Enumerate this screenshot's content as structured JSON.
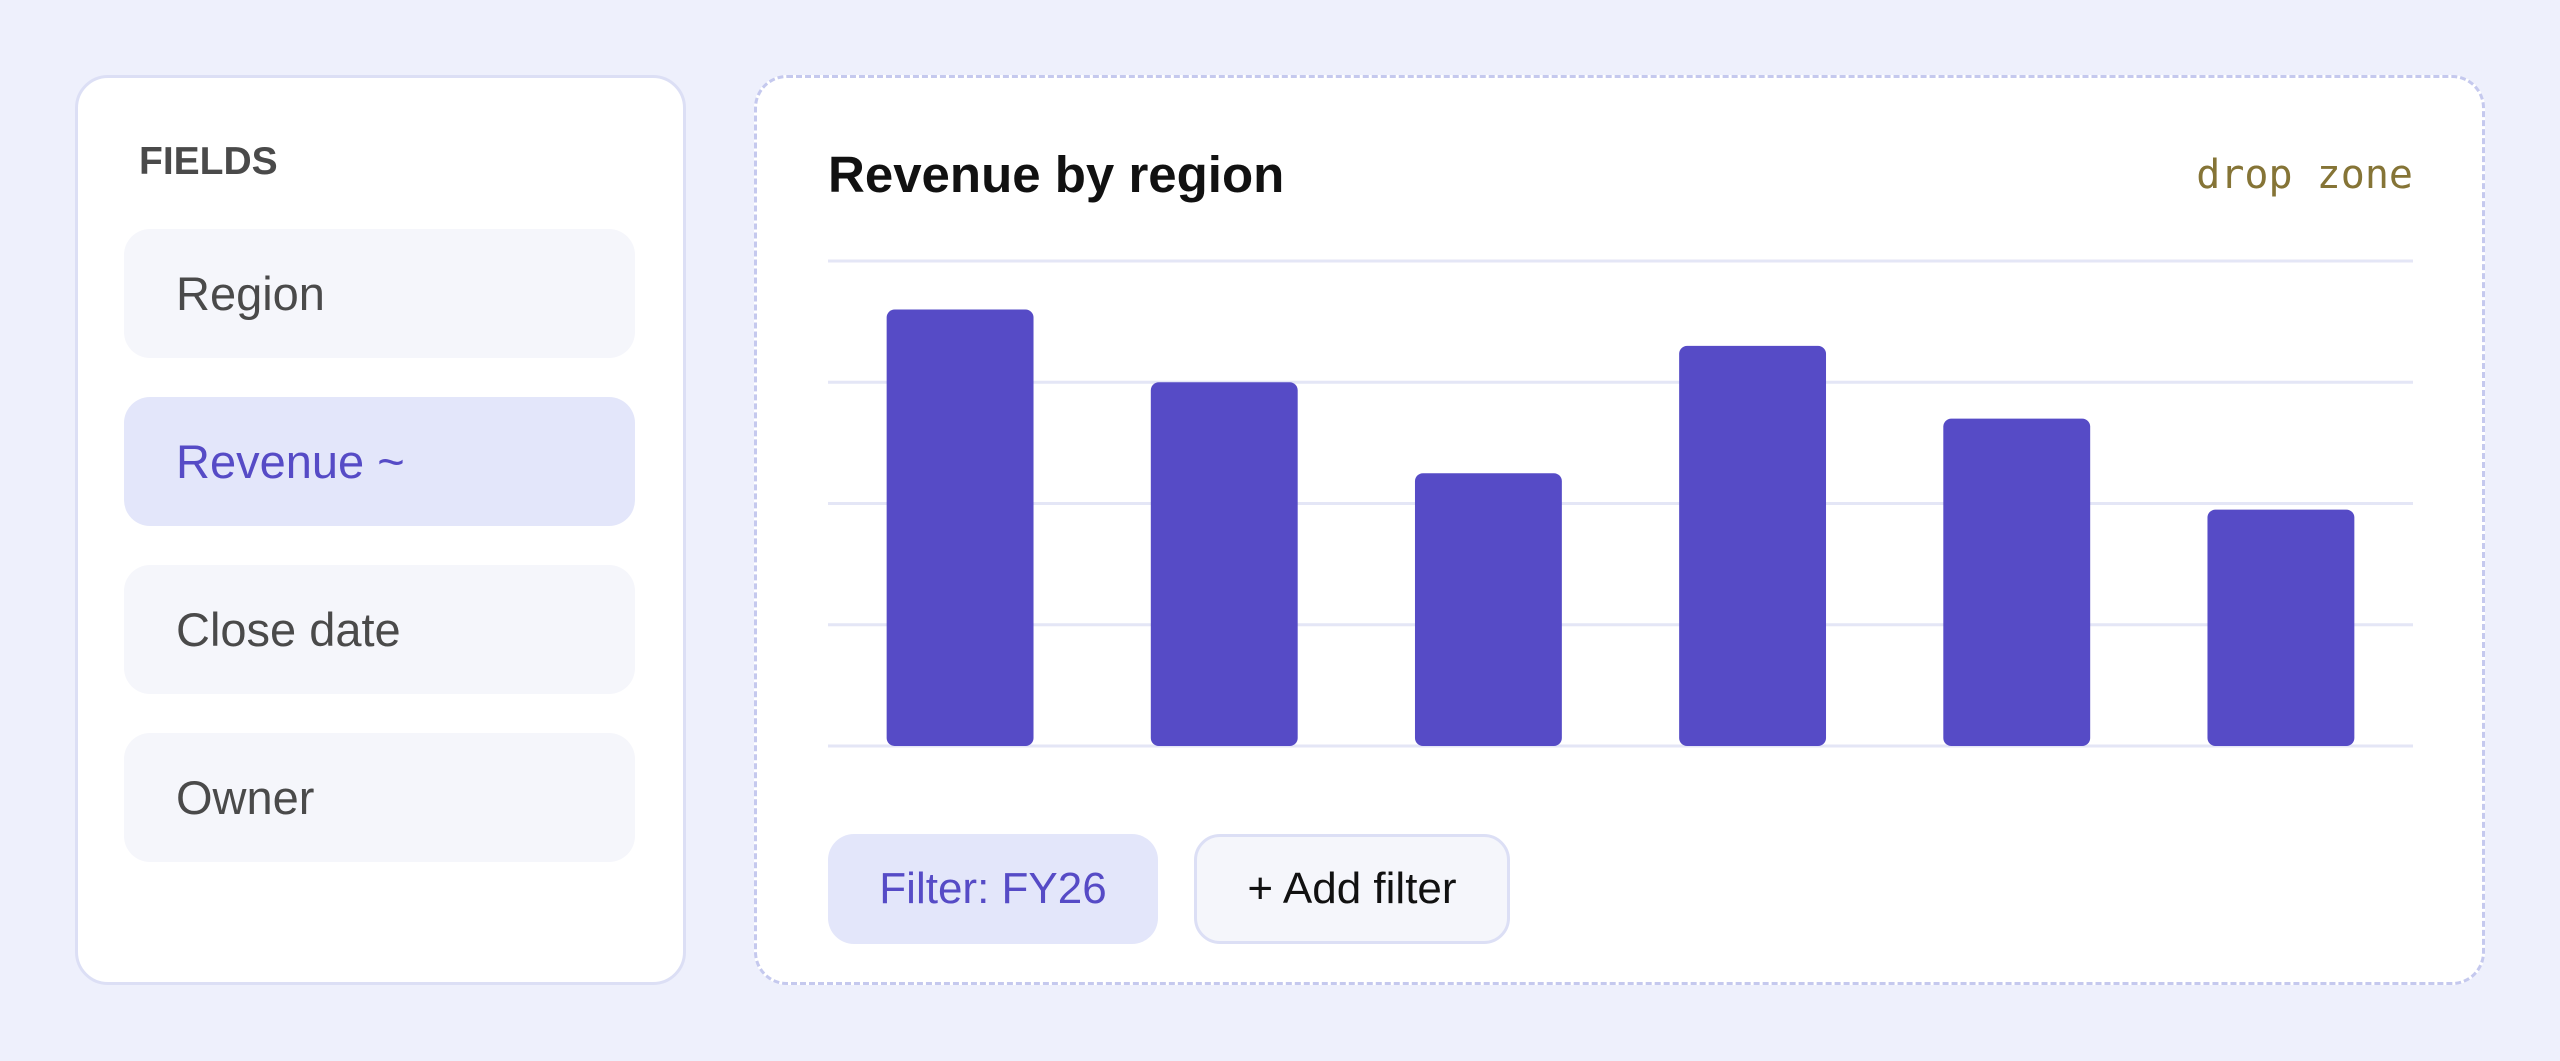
{
  "sidebar": {
    "title": "FIELDS",
    "fields": [
      "Region",
      "Revenue ~",
      "Close date",
      "Owner"
    ],
    "active": 1
  },
  "panel": {
    "drop_zone": "drop zone",
    "filters": [
      "Filter: FY26",
      "+ Add filter"
    ]
  },
  "chart_data": {
    "type": "bar",
    "title": "Revenue by region",
    "values": [
      3.6,
      3,
      2.25,
      3.3,
      2.7,
      1.95
    ],
    "color": "#564bc6",
    "ylim": [
      0,
      4
    ],
    "yticks": [
      0,
      1,
      2,
      3,
      4
    ],
    "grid": true
  }
}
